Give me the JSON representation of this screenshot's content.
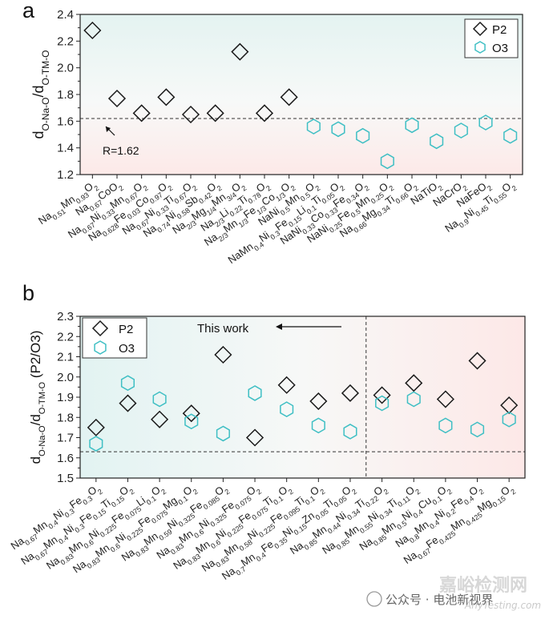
{
  "watermark": {
    "wechat_prefix": "公众号 · ",
    "wechat_name": "电池新视界",
    "site_cn": "嘉峪检测网",
    "site_en": "AnyTesting.com"
  },
  "chart_data": [
    {
      "panel": "a",
      "type": "scatter",
      "ylabel": "dO-Na-O/dO-TM-O",
      "ylim": [
        1.2,
        2.4
      ],
      "yticks": [
        "1.2",
        "1.4",
        "1.6",
        "1.8",
        "2.0",
        "2.2",
        "2.4"
      ],
      "reference_line": {
        "y": 1.62,
        "label": "R=1.62"
      },
      "legend": [
        "P2",
        "O3"
      ],
      "legend_position": "top-right",
      "categories": [
        "Na0.51Mn0.93O2",
        "Na0.67CoO2",
        "Na0.67Ni0.33Mn0.67O2",
        "Na0.628Fe0.03Co0.97O2",
        "Na0.67Ni0.33Ti0.67O2",
        "Na0.74Ni0.58Sb0.42O2",
        "Na2/3Mg1/4Mn3/4O2",
        "Na2/3Li0.22Ti0.78O2",
        "Na2/3Mn1/3Fe1/3Co1/3O2",
        "NaNi0.5Mn0.5O2",
        "NaMn0.4Ni0.3Fe0.15Li0.1Ti0.05O2",
        "NaNi0.33Co0.33Fe0.34O2",
        "NaNi0.25Fe0.5Mn0.25O2",
        "Na0.66Mg0.34Ti0.66O2",
        "NaTiO2",
        "NaCrO2",
        "NaFeO2",
        "Na0.9Ni0.45Ti0.55O2"
      ],
      "series": [
        {
          "name": "P2",
          "values": [
            2.28,
            1.77,
            1.66,
            1.78,
            1.65,
            1.66,
            2.12,
            1.66,
            1.78,
            null,
            null,
            null,
            null,
            null,
            null,
            null,
            null,
            null
          ]
        },
        {
          "name": "O3",
          "values": [
            null,
            null,
            null,
            null,
            null,
            null,
            null,
            null,
            null,
            1.56,
            1.54,
            1.49,
            1.3,
            1.57,
            1.45,
            1.53,
            1.59,
            1.49
          ]
        }
      ]
    },
    {
      "panel": "b",
      "type": "scatter",
      "ylabel": "dO-Na-O/dO-TM-O (P2/O3)",
      "ylim": [
        1.5,
        2.3
      ],
      "yticks": [
        "1.5",
        "1.6",
        "1.7",
        "1.8",
        "1.9",
        "2.0",
        "2.1",
        "2.2",
        "2.3"
      ],
      "reference_line": {
        "y": 1.63
      },
      "divider_after_index": 8,
      "annotation": "This work",
      "legend": [
        "P2",
        "O3"
      ],
      "legend_position": "top-left",
      "categories": [
        "Na0.67Mn0.4Ni0.3Fe0.3O2",
        "Na0.67Mn0.4Ni0.3Fe0.15Ti0.15O2",
        "Na0.83Mn0.6Ni0.225Fe0.075Li0.1O2",
        "Na0.83Mn0.6Ni0.225Fe0.075Mg0.1O2",
        "Na0.83Mn0.59Ni0.325Fe0.085O2",
        "Na0.83Mn0.6Ni0.325Fe0.075O2",
        "Na0.83Mn0.6Ni0.225Fe0.075Ti0.1O2",
        "Na0.83Mn0.58Ni0.225Fe0.095Ti0.1O2",
        "Na0.7Mn0.4Fe0.35Ni0.15Zn0.05Ti0.05O2",
        "Na0.85Mn0.44Ni0.34Ti0.22O2",
        "Na0.85Mn0.55Ni0.34Ti0.11O2",
        "Na0.85Mn0.5Ni0.4Cu0.1O2",
        "Na0.8Mn0.4Ni0.2Fe0.4O2",
        "Na0.67Fe0.425Mn0.425Mg0.15O2"
      ],
      "series": [
        {
          "name": "P2",
          "values": [
            1.75,
            1.87,
            1.79,
            1.82,
            2.11,
            1.7,
            1.96,
            1.88,
            1.92,
            1.91,
            1.97,
            1.89,
            2.08,
            1.86
          ]
        },
        {
          "name": "O3",
          "values": [
            1.67,
            1.97,
            1.89,
            1.78,
            1.72,
            1.92,
            1.84,
            1.76,
            1.73,
            1.87,
            1.89,
            1.76,
            1.74,
            1.79
          ]
        }
      ]
    }
  ]
}
